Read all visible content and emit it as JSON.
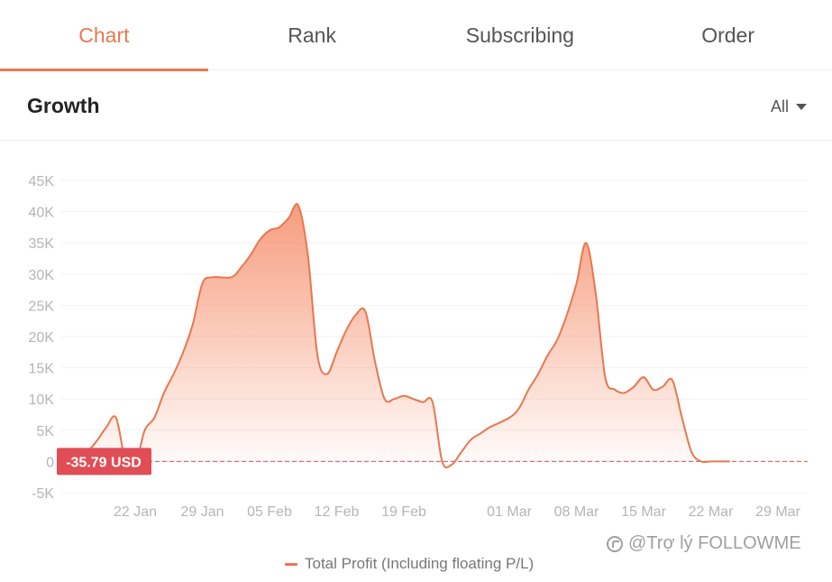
{
  "tabs": [
    {
      "label": "Chart",
      "active": true
    },
    {
      "label": "Rank",
      "active": false
    },
    {
      "label": "Subscribing",
      "active": false
    },
    {
      "label": "Order",
      "active": false
    }
  ],
  "header": {
    "title": "Growth",
    "range_label": "All"
  },
  "colors": {
    "accent": "#e8774f",
    "line": "#e8774f",
    "area_top": "#f58b66",
    "badge": "#e04d55",
    "zero_line": "#d9534f",
    "grid": "#f2f2f2"
  },
  "cursor_label": "-35.79 USD",
  "legend_label": "Total Profit (Including floating P/L)",
  "watermark_text": "@Trợ lý FOLLOWME",
  "chart_data": {
    "type": "area",
    "title": "",
    "xlabel": "",
    "ylabel": "",
    "ylim": [
      -5000,
      45000
    ],
    "y_ticks": [
      -5000,
      0,
      5000,
      10000,
      15000,
      20000,
      25000,
      30000,
      35000,
      40000,
      45000
    ],
    "y_tick_labels": [
      "-5K",
      "0",
      "5K",
      "10K",
      "15K",
      "20K",
      "25K",
      "30K",
      "35K",
      "40K",
      "45K"
    ],
    "x_ticks": [
      {
        "date": "2020-01-22",
        "label": "22 Jan"
      },
      {
        "date": "2020-01-29",
        "label": "29 Jan"
      },
      {
        "date": "2020-02-05",
        "label": "05 Feb"
      },
      {
        "date": "2020-02-12",
        "label": "12 Feb"
      },
      {
        "date": "2020-02-19",
        "label": "19 Feb"
      },
      {
        "date": "2020-03-01",
        "label": "01 Mar"
      },
      {
        "date": "2020-03-08",
        "label": "08 Mar"
      },
      {
        "date": "2020-03-15",
        "label": "15 Mar"
      },
      {
        "date": "2020-03-22",
        "label": "22 Mar"
      },
      {
        "date": "2020-03-29",
        "label": "29 Mar"
      }
    ],
    "grid": true,
    "legend": "bottom-center",
    "series": [
      {
        "name": "Total Profit (Including floating P/L)",
        "points": [
          [
            "2020-01-16",
            0
          ],
          [
            "2020-01-17",
            1500
          ],
          [
            "2020-01-18",
            3300
          ],
          [
            "2020-01-19",
            5500
          ],
          [
            "2020-01-20",
            7000
          ],
          [
            "2020-01-21",
            0
          ],
          [
            "2020-01-22",
            -500
          ],
          [
            "2020-01-23",
            5000
          ],
          [
            "2020-01-24",
            7000
          ],
          [
            "2020-01-25",
            11000
          ],
          [
            "2020-01-26",
            14000
          ],
          [
            "2020-01-27",
            17500
          ],
          [
            "2020-01-28",
            22000
          ],
          [
            "2020-01-29",
            28500
          ],
          [
            "2020-01-30",
            29500
          ],
          [
            "2020-02-01",
            29500
          ],
          [
            "2020-02-02",
            31000
          ],
          [
            "2020-02-03",
            33000
          ],
          [
            "2020-02-04",
            35500
          ],
          [
            "2020-02-05",
            37000
          ],
          [
            "2020-02-06",
            37500
          ],
          [
            "2020-02-07",
            39000
          ],
          [
            "2020-02-08",
            41000
          ],
          [
            "2020-02-09",
            33000
          ],
          [
            "2020-02-10",
            17000
          ],
          [
            "2020-02-11",
            14000
          ],
          [
            "2020-02-12",
            17500
          ],
          [
            "2020-02-13",
            21000
          ],
          [
            "2020-02-14",
            23500
          ],
          [
            "2020-02-15",
            24000
          ],
          [
            "2020-02-16",
            16000
          ],
          [
            "2020-02-17",
            10000
          ],
          [
            "2020-02-18",
            10000
          ],
          [
            "2020-02-19",
            10500
          ],
          [
            "2020-02-20",
            10000
          ],
          [
            "2020-02-21",
            9500
          ],
          [
            "2020-02-22",
            9500
          ],
          [
            "2020-02-23",
            0
          ],
          [
            "2020-02-24",
            -500
          ],
          [
            "2020-02-25",
            1500
          ],
          [
            "2020-02-26",
            3500
          ],
          [
            "2020-02-27",
            4500
          ],
          [
            "2020-02-28",
            5500
          ],
          [
            "2020-03-01",
            7000
          ],
          [
            "2020-03-02",
            8500
          ],
          [
            "2020-03-03",
            11500
          ],
          [
            "2020-03-04",
            14000
          ],
          [
            "2020-03-05",
            17000
          ],
          [
            "2020-03-06",
            19500
          ],
          [
            "2020-03-07",
            23500
          ],
          [
            "2020-03-08",
            28500
          ],
          [
            "2020-03-09",
            35000
          ],
          [
            "2020-03-10",
            27000
          ],
          [
            "2020-03-11",
            13500
          ],
          [
            "2020-03-12",
            11500
          ],
          [
            "2020-03-13",
            11000
          ],
          [
            "2020-03-14",
            12000
          ],
          [
            "2020-03-15",
            13500
          ],
          [
            "2020-03-16",
            11500
          ],
          [
            "2020-03-17",
            12000
          ],
          [
            "2020-03-18",
            13000
          ],
          [
            "2020-03-19",
            7000
          ],
          [
            "2020-03-20",
            1500
          ],
          [
            "2020-03-21",
            0
          ],
          [
            "2020-03-22",
            0
          ],
          [
            "2020-03-23",
            0
          ],
          [
            "2020-03-24",
            0
          ]
        ]
      }
    ]
  }
}
